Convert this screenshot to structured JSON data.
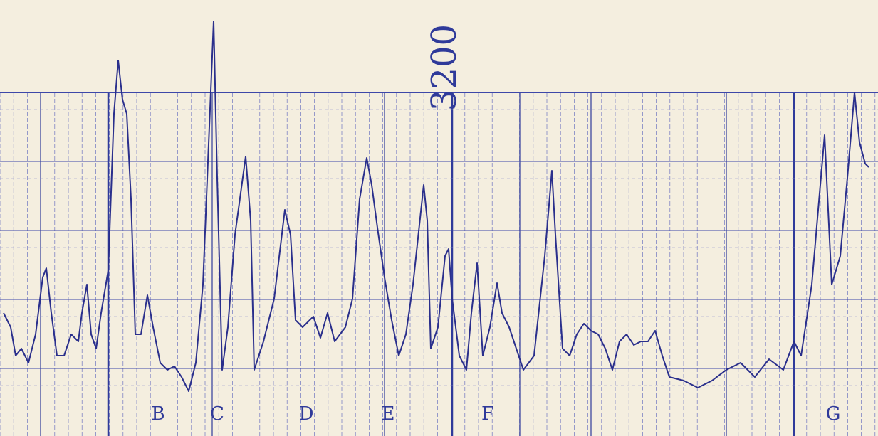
{
  "annotation": "3200",
  "sections": [
    "B",
    "C",
    "D",
    "E",
    "F",
    "G"
  ]
}
